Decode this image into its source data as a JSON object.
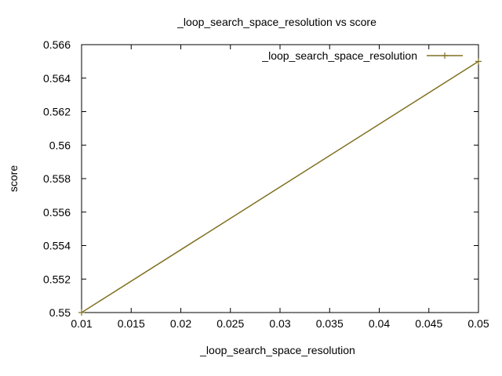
{
  "chart_data": {
    "type": "line",
    "title": "_loop_search_space_resolution vs score",
    "xlabel": "_loop_search_space_resolution",
    "ylabel": "score",
    "xlim": [
      0.01,
      0.05
    ],
    "ylim": [
      0.55,
      0.566
    ],
    "xticks": [
      "0.01",
      "0.015",
      "0.02",
      "0.025",
      "0.03",
      "0.035",
      "0.04",
      "0.045",
      "0.05"
    ],
    "yticks": [
      "0.55",
      "0.552",
      "0.554",
      "0.556",
      "0.558",
      "0.56",
      "0.562",
      "0.564",
      "0.566"
    ],
    "grid": false,
    "legend_position": "top-right",
    "series": [
      {
        "name": "_loop_search_space_resolution",
        "color": "#807020",
        "marker": "plus",
        "x": [
          0.01,
          0.05
        ],
        "y": [
          0.55,
          0.565
        ]
      }
    ]
  }
}
